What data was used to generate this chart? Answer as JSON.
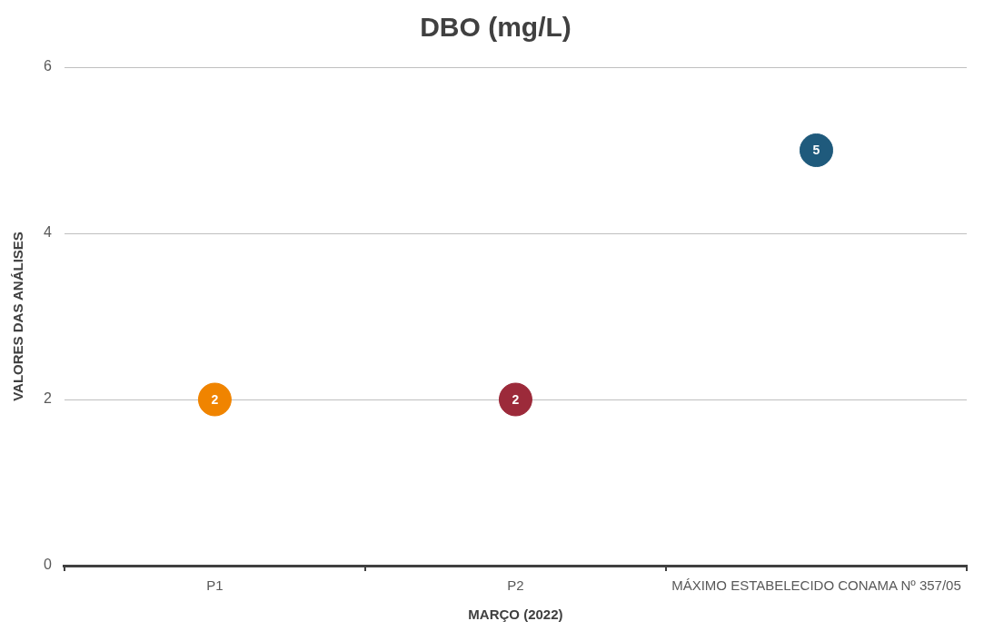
{
  "chart_data": {
    "type": "scatter",
    "title": "DBO (mg/L)",
    "xlabel": "MARÇO (2022)",
    "ylabel": "VALORES DAS ANÁLISES",
    "categories": [
      "P1",
      "P2",
      "MÁXIMO ESTABELECIDO CONAMA Nº 357/05"
    ],
    "values": [
      2,
      2,
      5
    ],
    "colors": [
      "#f08400",
      "#9c2a3a",
      "#1f5a7c"
    ],
    "ylim": [
      0,
      6
    ],
    "yticks": [
      0,
      2,
      4,
      6
    ],
    "grid": "y",
    "marker": "circle",
    "data_labels": true,
    "legend": false
  }
}
